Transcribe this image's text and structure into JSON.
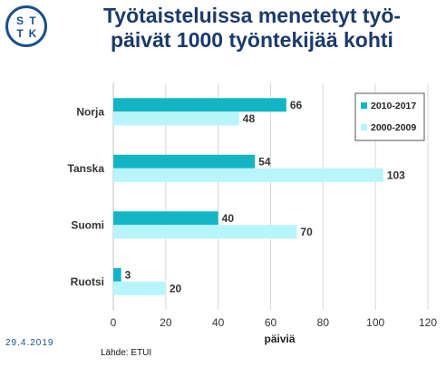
{
  "logo": {
    "letters": [
      "S",
      "T",
      "T",
      "K"
    ]
  },
  "title_line1": "Työtaisteluissa menetetyt työ-",
  "title_line2": "päivät 1000 työntekijää kohti",
  "date": "29.4.2019",
  "source": "Lähde: ETUI",
  "chart_data": {
    "type": "bar",
    "orientation": "horizontal",
    "categories": [
      "Norja",
      "Tanska",
      "Suomi",
      "Ruotsi"
    ],
    "series": [
      {
        "name": "2010-2017",
        "values": [
          66,
          54,
          40,
          3
        ],
        "color": "#13b5c4"
      },
      {
        "name": "2000-2009",
        "values": [
          48,
          103,
          70,
          20
        ],
        "color": "#b7f5fb"
      }
    ],
    "xlabel": "päiviä",
    "xlim": [
      0,
      120
    ],
    "xticks": [
      0,
      20,
      40,
      60,
      80,
      100,
      120
    ],
    "legend": "top-right",
    "grid": true
  }
}
